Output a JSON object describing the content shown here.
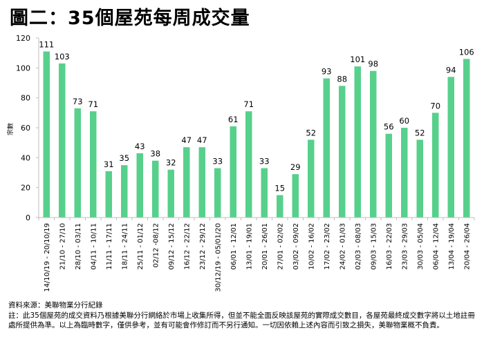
{
  "title": "圖二：35個屋苑每周成交量",
  "footer": {
    "source": "資料來源：美聯物業分行紀錄",
    "note": "註：此35個屋苑的成交資料乃根據美聯分行網絡於市場上收集所得，但並不能全面反映該屋苑的實際成交數目，各屋苑最終成交數字將以土地註冊處所提供為準。以上為臨時數字，僅供參考，並有可能會作修訂而不另行通知。一切因依賴上述內容而引致之損失，美聯物業概不負責。"
  },
  "colors": {
    "bar": "#57d08c",
    "axis": "#bfbfbf"
  },
  "chart_data": {
    "type": "bar",
    "title": "圖二：35個屋苑每周成交量",
    "xlabel": "",
    "ylabel": "宗數",
    "ylim": [
      0,
      120
    ],
    "yticks": [
      0,
      20,
      40,
      60,
      80,
      100,
      120
    ],
    "grid": false,
    "categories": [
      "14/10/19 - 20/10/19",
      "21/10 - 27/10",
      "28/10 - 03/11",
      "04/11 - 10/11",
      "11/11 - 17/11",
      "18/11 - 24/11",
      "25/11 - 01/12",
      "02/12 -08/12",
      "09/12 - 15/12",
      "16/12 - 22/12",
      "23/12 - 29/12",
      "30/12/19 - 05/01/20",
      "06/01 - 12/01",
      "13/01 - 19/01",
      "20/01 - 26/01",
      "27/01 - 02/02",
      "03/02 - 09/02",
      "10/02 - 16/02",
      "17/02 - 23/02",
      "24/02 - 01/03",
      "02/03 - 08/03",
      "09/03 - 15/03",
      "16/03 - 22/03",
      "23/03 - 29/03",
      "30/03 - 05/04",
      "06/04 - 12/04",
      "13/04 - 19/04",
      "20/04 - 26/04"
    ],
    "values": [
      111,
      103,
      73,
      71,
      31,
      35,
      43,
      38,
      32,
      47,
      47,
      33,
      61,
      71,
      33,
      15,
      29,
      52,
      93,
      88,
      101,
      98,
      56,
      60,
      52,
      70,
      94,
      106
    ]
  }
}
